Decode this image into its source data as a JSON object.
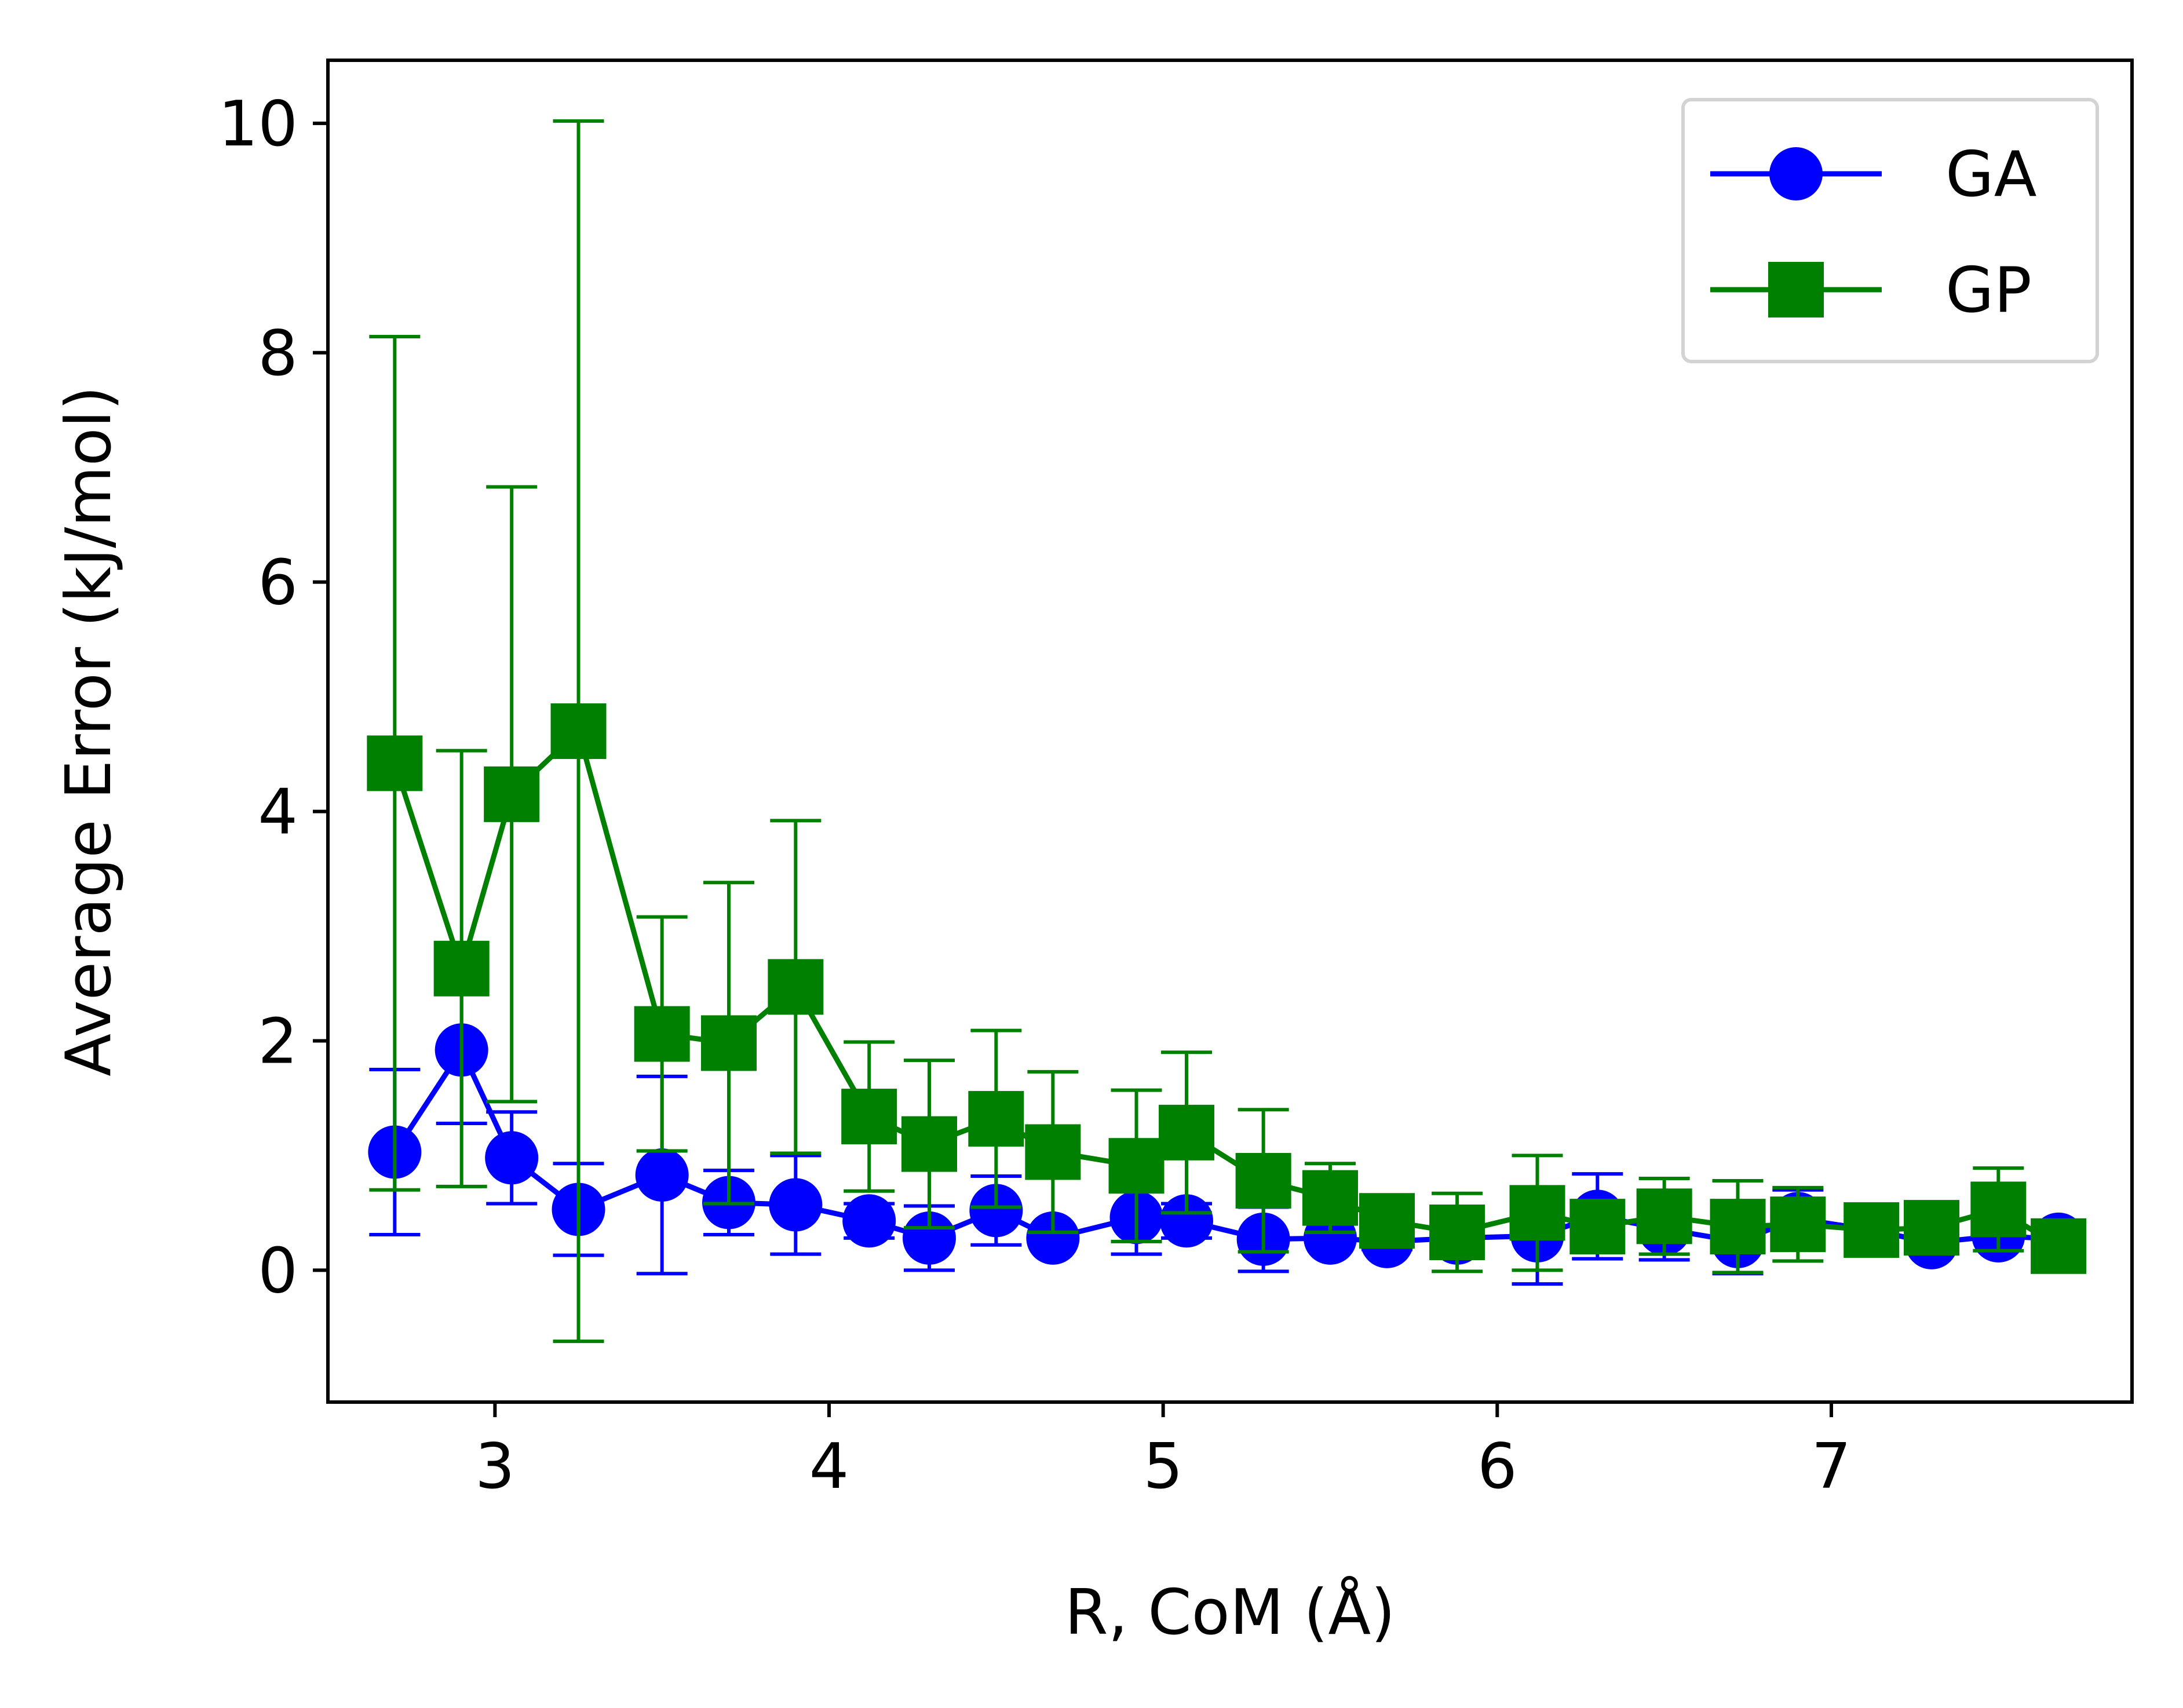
{
  "chart_data": {
    "type": "line",
    "xlabel": "R, CoM (Å)",
    "ylabel": "Average Error (kJ/mol)",
    "xlim": [
      2.5,
      7.9
    ],
    "ylim": [
      -1.15,
      10.55
    ],
    "xticks": [
      3,
      4,
      5,
      6,
      7
    ],
    "yticks": [
      0,
      2,
      4,
      6,
      8,
      10
    ],
    "grid": false,
    "legend_position": "top-right",
    "series": [
      {
        "name": "GA",
        "color": "#0000ff",
        "marker": "circle",
        "x": [
          2.7,
          2.9,
          3.05,
          3.25,
          3.5,
          3.7,
          3.9,
          4.12,
          4.3,
          4.5,
          4.67,
          4.92,
          5.07,
          5.3,
          5.5,
          5.67,
          5.88,
          6.12,
          6.3,
          6.5,
          6.72,
          6.9,
          7.12,
          7.3,
          7.5,
          7.68
        ],
        "y": [
          1.03,
          1.92,
          0.98,
          0.53,
          0.83,
          0.59,
          0.57,
          0.43,
          0.28,
          0.52,
          0.28,
          0.46,
          0.43,
          0.27,
          0.28,
          0.25,
          0.28,
          0.3,
          0.47,
          0.36,
          0.25,
          0.45,
          0.35,
          0.24,
          0.3,
          0.27
        ],
        "err": [
          0.72,
          0.64,
          0.4,
          0.4,
          0.86,
          0.28,
          0.43,
          0.15,
          0.28,
          0.3,
          0.05,
          0.32,
          0.15,
          0.28,
          0.04,
          0.07,
          0.07,
          0.42,
          0.37,
          0.27,
          0.28,
          0.25,
          0.07,
          0.09,
          0.05,
          0.05
        ]
      },
      {
        "name": "GP",
        "color": "#008000",
        "marker": "square",
        "x": [
          2.7,
          2.9,
          3.05,
          3.25,
          3.5,
          3.7,
          3.9,
          4.12,
          4.3,
          4.5,
          4.67,
          4.92,
          5.07,
          5.3,
          5.5,
          5.67,
          5.88,
          6.12,
          6.3,
          6.5,
          6.72,
          6.9,
          7.12,
          7.3,
          7.5,
          7.68
        ],
        "y": [
          4.42,
          2.63,
          4.15,
          4.7,
          2.06,
          1.98,
          2.47,
          1.34,
          1.1,
          1.32,
          1.03,
          0.91,
          1.2,
          0.78,
          0.63,
          0.43,
          0.33,
          0.5,
          0.38,
          0.47,
          0.38,
          0.4,
          0.35,
          0.37,
          0.53,
          0.21
        ],
        "err": [
          3.72,
          1.9,
          2.68,
          5.32,
          1.02,
          1.4,
          1.45,
          0.65,
          0.73,
          0.77,
          0.7,
          0.66,
          0.7,
          0.62,
          0.3,
          0.18,
          0.34,
          0.5,
          0.2,
          0.33,
          0.4,
          0.32,
          0.1,
          0.2,
          0.36,
          0.08
        ]
      }
    ]
  }
}
